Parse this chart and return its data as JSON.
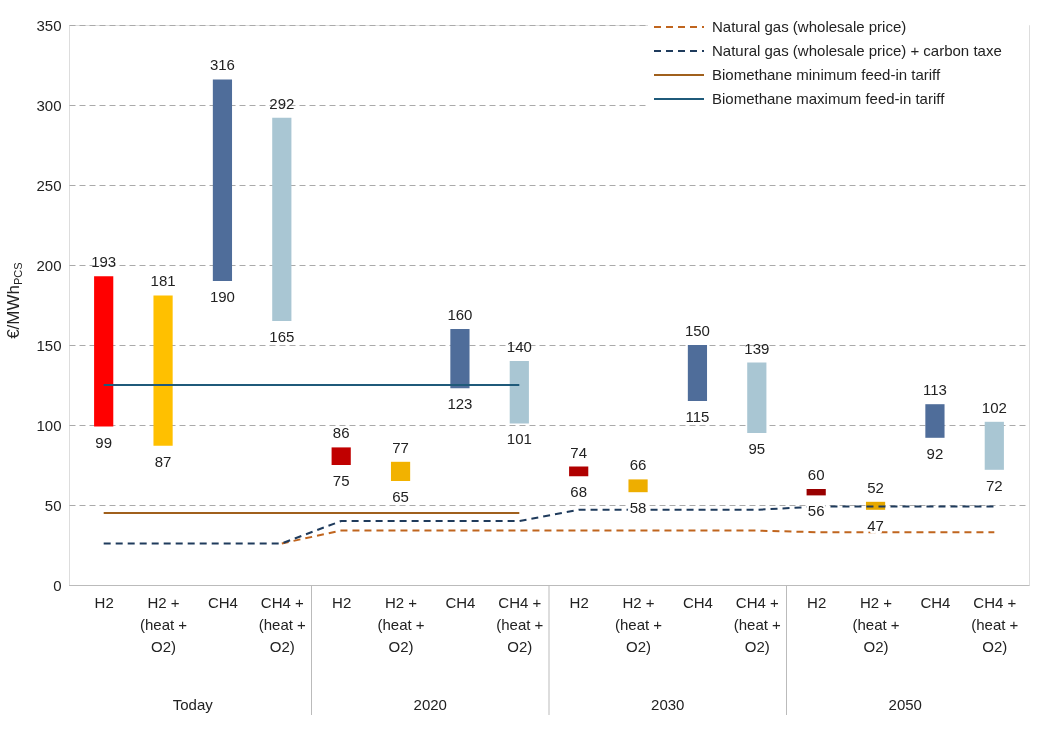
{
  "chart_data": {
    "type": "bar",
    "ylabel": "€/MWh$_{PCS}$",
    "categories": [
      "H2",
      "H2 +\n(heat +\nO2)",
      "CH4",
      "CH4 +\n(heat +\nO2)",
      "H2",
      "H2 +\n(heat +\nO2)",
      "CH4",
      "CH4 +\n(heat +\nO2)",
      "H2",
      "H2 +\n(heat +\nO2)",
      "CH4",
      "CH4 +\n(heat +\nO2)",
      "H2",
      "H2 +\n(heat +\nO2)",
      "CH4",
      "CH4 +\n(heat +\nO2)"
    ],
    "base": [
      99,
      87,
      190,
      165,
      75,
      65,
      123,
      101,
      68,
      58,
      115,
      95,
      56,
      47,
      92,
      72
    ],
    "values": [
      94,
      94,
      126,
      127,
      11,
      12,
      37,
      39,
      6,
      8,
      35,
      44,
      4,
      5,
      21,
      30
    ],
    "colors": [
      "#ff0000",
      "#ffc000",
      "#4f6d9a",
      "#a9c6d3",
      "#c00000",
      "#f2b200",
      "#4f6d9a",
      "#a9c6d3",
      "#b00000",
      "#eeae00",
      "#4f6d9a",
      "#a9c6d3",
      "#990000",
      "#e6a800",
      "#4f6d9a",
      "#a9c6d3"
    ],
    "value_labels": [
      "193",
      "181",
      "316",
      "292",
      "86",
      "77",
      "160",
      "140",
      "74",
      "66",
      "150",
      "139",
      "60",
      "52",
      "113",
      "102"
    ],
    "series": [
      {
        "name": "Natural gas (wholesale price)",
        "type": "line",
        "line_style": "dashed",
        "color": "#c0651e",
        "values": [
          null,
          null,
          null,
          26,
          34,
          34,
          34,
          34,
          34,
          34,
          34,
          34,
          33,
          33,
          33,
          33
        ]
      },
      {
        "name": "Natural gas (wholesale price) + carbon taxe",
        "type": "line",
        "line_style": "dashed",
        "color": "#1f3b5c",
        "values": [
          26,
          26,
          26,
          26,
          40,
          40,
          40,
          40,
          47,
          47,
          47,
          47,
          49,
          49,
          49,
          49
        ]
      },
      {
        "name": "Biomethane minimum feed-in tariff",
        "type": "line",
        "line_style": "solid",
        "color": "#a0601c",
        "values": [
          45,
          45,
          45,
          45,
          45,
          45,
          45,
          45,
          null,
          null,
          null,
          null,
          null,
          null,
          null,
          null
        ]
      },
      {
        "name": "Biomethane maximum feed-in tariff",
        "type": "line",
        "line_style": "solid",
        "color": "#1f5a7a",
        "values": [
          125,
          125,
          125,
          125,
          125,
          125,
          125,
          125,
          null,
          null,
          null,
          null,
          null,
          null,
          null,
          null
        ]
      }
    ],
    "annotations": [
      "Today",
      "2020",
      "2030",
      "2050",
      {
        "text": "99",
        "y": 99
      },
      {
        "text": "87",
        "y": 87
      },
      {
        "text": "190",
        "y": 190
      },
      {
        "text": "165",
        "y": 165
      },
      {
        "text": "75",
        "y": 75
      },
      {
        "text": "65",
        "y": 65
      },
      {
        "text": "123",
        "y": 123
      },
      {
        "text": "101",
        "y": 101
      },
      {
        "text": "68",
        "y": 68
      },
      {
        "text": "58",
        "y": 58
      },
      {
        "text": "115",
        "y": 115
      },
      {
        "text": "95",
        "y": 95
      },
      {
        "text": "56",
        "y": 56
      },
      {
        "text": "47",
        "y": 47
      },
      {
        "text": "92",
        "y": 92
      },
      {
        "text": "72",
        "y": 72
      }
    ],
    "ylim": [
      0,
      350
    ],
    "yticks": [
      0,
      50,
      100,
      150,
      200,
      250,
      300,
      350
    ],
    "grid": "y",
    "legend": "top right"
  }
}
